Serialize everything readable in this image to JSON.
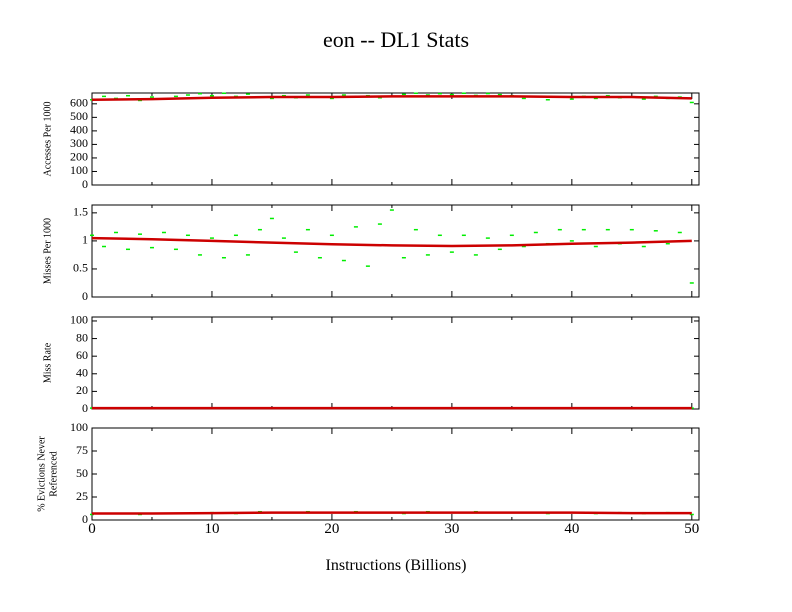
{
  "title": "eon -- DL1  Stats",
  "xlabel": "Instructions (Billions)",
  "chart_data": [
    {
      "type": "scatter",
      "ylabel": [
        "Accesses Per 1000"
      ],
      "xlim": [
        0,
        50.6
      ],
      "ylim": [
        0,
        680
      ],
      "yticks": [
        0,
        100,
        200,
        300,
        400,
        500,
        600
      ],
      "xticks": [
        0,
        10,
        20,
        30,
        40,
        50
      ],
      "xminor": [
        5,
        15,
        25,
        35,
        45
      ],
      "show_xticklabels": false,
      "series": [
        {
          "kind": "points",
          "color": "#00ee00",
          "x": [
            0,
            1,
            2,
            3,
            4,
            5,
            6,
            7,
            8,
            9,
            10,
            11,
            12,
            13,
            14,
            15,
            16,
            17,
            18,
            19,
            20,
            21,
            22,
            23,
            24,
            25,
            26,
            27,
            28,
            29,
            30,
            31,
            32,
            33,
            34,
            35,
            36,
            37,
            38,
            39,
            40,
            41,
            42,
            43,
            44,
            45,
            46,
            47,
            48,
            49,
            50
          ],
          "values": [
            630,
            655,
            640,
            660,
            625,
            650,
            635,
            655,
            665,
            675,
            660,
            678,
            655,
            672,
            650,
            640,
            660,
            645,
            665,
            650,
            640,
            665,
            650,
            660,
            645,
            655,
            670,
            678,
            665,
            675,
            668,
            678,
            662,
            676,
            668,
            660,
            640,
            655,
            630,
            650,
            635,
            655,
            640,
            660,
            645,
            650,
            635,
            655,
            640,
            650,
            610
          ]
        },
        {
          "kind": "line",
          "color": "#cc0000",
          "x": [
            0,
            5,
            10,
            15,
            20,
            25,
            30,
            35,
            40,
            45,
            50
          ],
          "values": [
            630,
            635,
            645,
            650,
            650,
            655,
            655,
            655,
            650,
            650,
            640
          ]
        }
      ]
    },
    {
      "type": "scatter",
      "ylabel": [
        "Misses Per 1000"
      ],
      "xlim": [
        0,
        50.6
      ],
      "ylim": [
        0,
        1.64
      ],
      "yticks": [
        0,
        0.5,
        1,
        1.5
      ],
      "xticks": [
        0,
        10,
        20,
        30,
        40,
        50
      ],
      "xminor": [
        5,
        15,
        25,
        35,
        45
      ],
      "show_xticklabels": false,
      "series": [
        {
          "kind": "points",
          "color": "#00ee00",
          "x": [
            0,
            1,
            2,
            3,
            4,
            5,
            6,
            7,
            8,
            9,
            10,
            11,
            12,
            13,
            14,
            15,
            16,
            17,
            18,
            19,
            20,
            21,
            22,
            23,
            24,
            25,
            26,
            27,
            28,
            29,
            30,
            31,
            32,
            33,
            34,
            35,
            36,
            37,
            38,
            39,
            40,
            41,
            42,
            43,
            44,
            45,
            46,
            47,
            48,
            49,
            50
          ],
          "values": [
            1.1,
            0.9,
            1.15,
            0.85,
            1.12,
            0.88,
            1.15,
            0.85,
            1.1,
            0.75,
            1.05,
            0.7,
            1.1,
            0.75,
            1.2,
            1.4,
            1.05,
            0.8,
            1.2,
            0.7,
            1.1,
            0.65,
            1.25,
            0.55,
            1.3,
            1.55,
            0.7,
            1.2,
            0.75,
            1.1,
            0.8,
            1.1,
            0.75,
            1.05,
            0.85,
            1.1,
            0.9,
            1.15,
            0.95,
            1.2,
            1.0,
            1.2,
            0.9,
            1.2,
            0.95,
            1.2,
            0.9,
            1.18,
            0.95,
            1.15,
            0.25
          ]
        },
        {
          "kind": "line",
          "color": "#cc0000",
          "x": [
            0,
            5,
            10,
            15,
            20,
            25,
            30,
            35,
            40,
            45,
            50
          ],
          "values": [
            1.05,
            1.03,
            1.0,
            0.97,
            0.94,
            0.92,
            0.91,
            0.92,
            0.95,
            0.97,
            1.0
          ]
        }
      ]
    },
    {
      "type": "scatter",
      "ylabel": [
        "Miss Rate"
      ],
      "xlim": [
        0,
        50.6
      ],
      "ylim": [
        0,
        104.5
      ],
      "yticks": [
        0,
        20,
        40,
        60,
        80,
        100
      ],
      "xticks": [
        0,
        10,
        20,
        30,
        40,
        50
      ],
      "xminor": [
        5,
        15,
        25,
        35,
        45
      ],
      "show_xticklabels": false,
      "series": [
        {
          "kind": "points",
          "color": "#00ee00",
          "x": [
            0,
            5,
            10,
            15,
            20,
            25,
            30,
            35,
            40,
            45,
            50
          ],
          "values": [
            1,
            1,
            1,
            1,
            1,
            1,
            1,
            1,
            1,
            1,
            1
          ]
        },
        {
          "kind": "line",
          "color": "#cc0000",
          "x": [
            0,
            5,
            10,
            15,
            20,
            25,
            30,
            35,
            40,
            45,
            50
          ],
          "values": [
            1,
            1,
            1,
            1,
            1,
            1,
            1,
            1,
            1,
            1,
            1
          ]
        }
      ]
    },
    {
      "type": "scatter",
      "ylabel": [
        "% Evictions Never",
        "Referenced"
      ],
      "xlim": [
        0,
        50.6
      ],
      "ylim": [
        0,
        100
      ],
      "yticks": [
        0,
        25,
        50,
        75,
        100
      ],
      "xticks": [
        0,
        10,
        20,
        30,
        40,
        50
      ],
      "xminor": [
        5,
        15,
        25,
        35,
        45
      ],
      "show_xticklabels": true,
      "series": [
        {
          "kind": "points",
          "color": "#00ee00",
          "x": [
            0,
            2,
            4,
            6,
            8,
            10,
            12,
            14,
            16,
            18,
            20,
            22,
            24,
            26,
            28,
            30,
            32,
            34,
            36,
            38,
            40,
            42,
            44,
            46,
            48,
            50
          ],
          "values": [
            6,
            7,
            6,
            7,
            7,
            8,
            7,
            9,
            8,
            9,
            8,
            9,
            8,
            7,
            9,
            8,
            9,
            8,
            8,
            7,
            8,
            7,
            8,
            7,
            8,
            6
          ]
        },
        {
          "kind": "line",
          "color": "#cc0000",
          "x": [
            0,
            5,
            10,
            15,
            20,
            25,
            30,
            35,
            40,
            45,
            50
          ],
          "values": [
            7,
            7,
            7.5,
            8,
            8,
            8,
            8,
            8,
            8,
            7.5,
            7.5
          ]
        }
      ]
    }
  ]
}
